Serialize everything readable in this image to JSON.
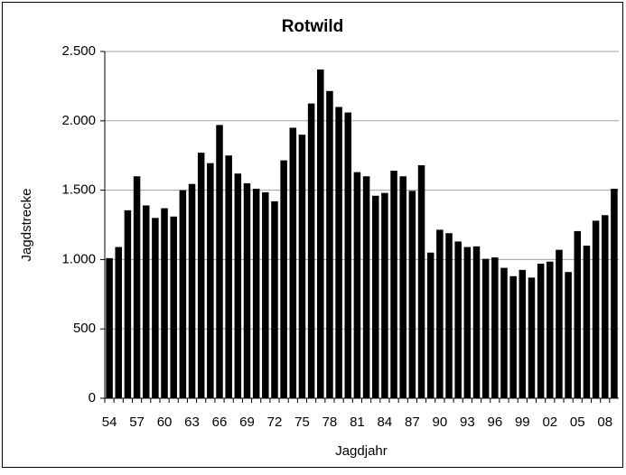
{
  "chart_data": {
    "type": "bar",
    "title": "Rotwild",
    "x_label": "Jagdjahr",
    "y_label": "Jagdstrecke",
    "categories": [
      "54",
      null,
      null,
      "57",
      null,
      null,
      "60",
      null,
      null,
      "63",
      null,
      null,
      "66",
      null,
      null,
      "69",
      null,
      null,
      "72",
      null,
      null,
      "75",
      null,
      null,
      "78",
      null,
      null,
      "81",
      null,
      null,
      "84",
      null,
      null,
      "87",
      null,
      null,
      "90",
      null,
      null,
      "93",
      null,
      null,
      "96",
      null,
      null,
      "99",
      null,
      null,
      "02",
      null,
      null,
      "05",
      null,
      null,
      "08",
      null
    ],
    "values": [
      1010,
      1090,
      1355,
      1600,
      1390,
      1300,
      1370,
      1310,
      1500,
      1545,
      1770,
      1695,
      1970,
      1750,
      1620,
      1550,
      1510,
      1485,
      1420,
      1715,
      1950,
      1900,
      2125,
      2370,
      2215,
      2100,
      2060,
      1630,
      1600,
      1460,
      1480,
      1640,
      1600,
      1495,
      1680,
      1050,
      1215,
      1190,
      1130,
      1090,
      1095,
      1005,
      1015,
      940,
      880,
      925,
      870,
      970,
      985,
      1070,
      910,
      1205,
      1100,
      1280,
      1320,
      1510
    ],
    "color": "#000000",
    "ylim": [
      0,
      2500
    ],
    "yticks": [
      0,
      500,
      {
        "value": 1000,
        "label": "1.000"
      },
      {
        "value": 1500,
        "label": "1.500"
      },
      {
        "value": 2000,
        "label": "2.000"
      },
      {
        "value": 2500,
        "label": "2.500"
      }
    ],
    "grid": true
  }
}
